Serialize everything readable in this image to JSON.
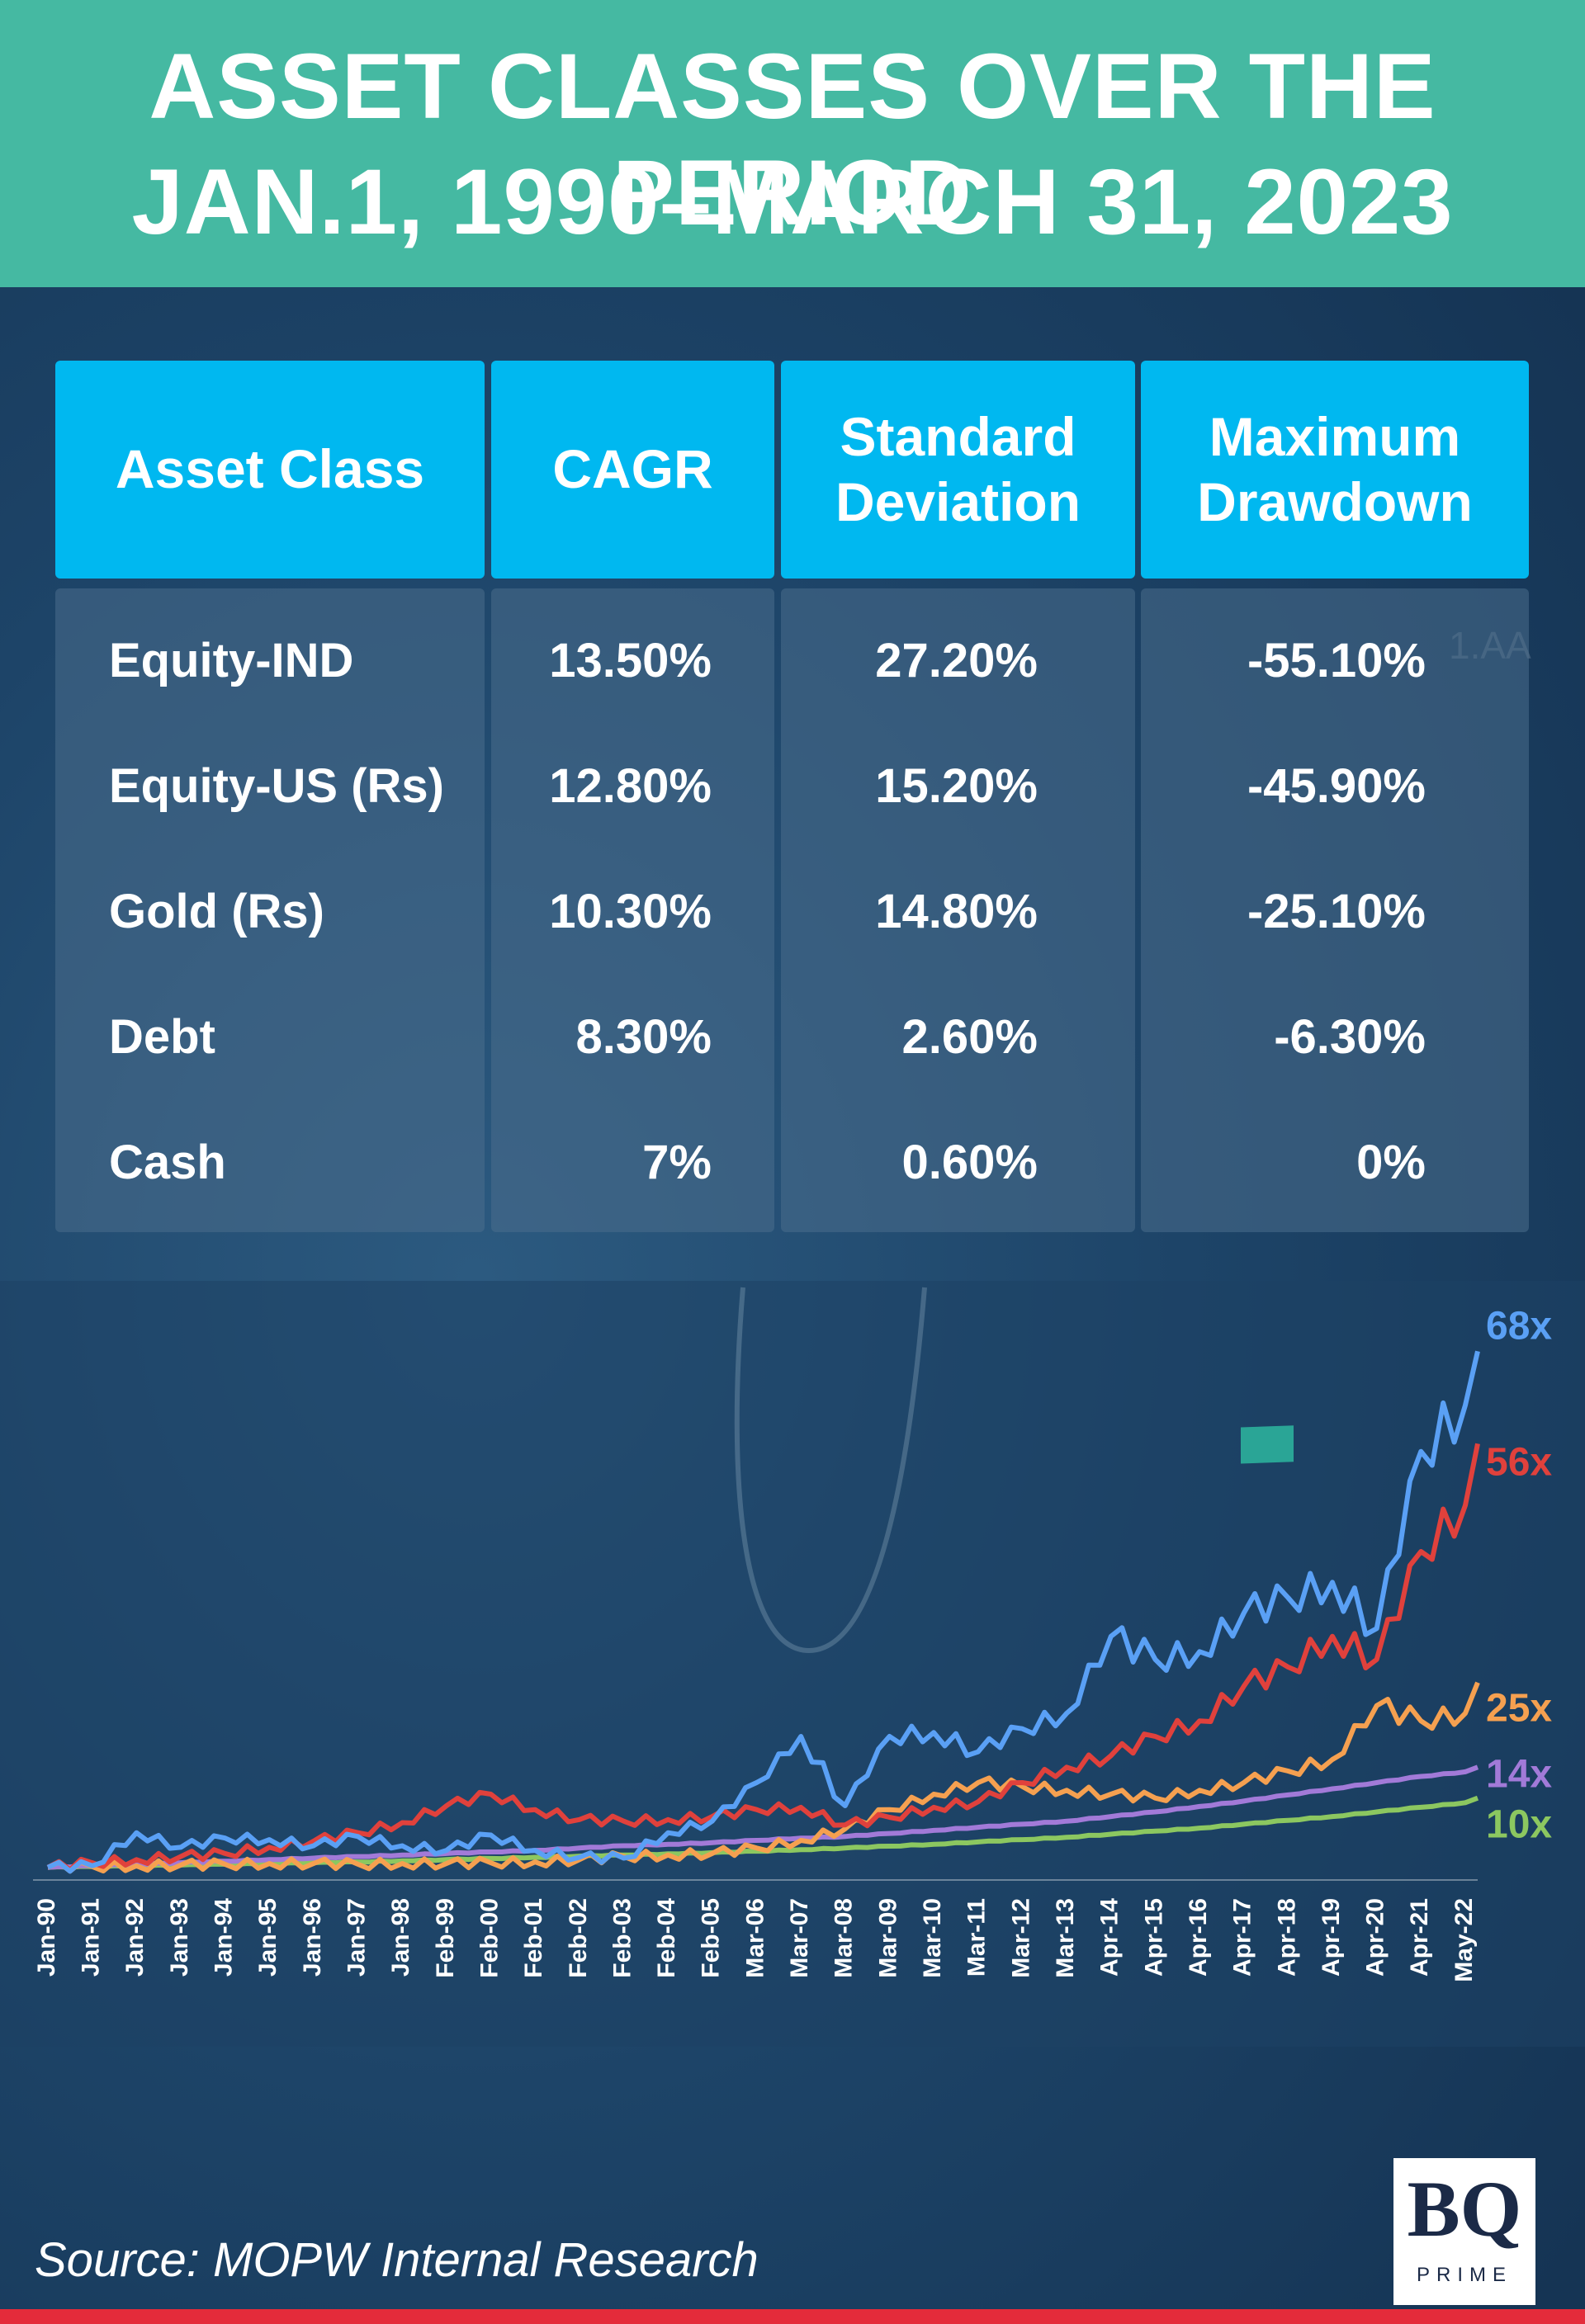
{
  "title": {
    "line1": "ASSET CLASSES OVER THE PERIOD",
    "line2": "JAN.1, 1990–MARCH 31, 2023"
  },
  "table": {
    "headers": [
      "Asset Class",
      "CAGR",
      "Standard Deviation",
      "Maximum Drawdown"
    ],
    "rows": [
      {
        "asset": "Equity-IND",
        "cagr": "13.50%",
        "std": "27.20%",
        "drawdown": "-55.10%"
      },
      {
        "asset": "Equity-US (Rs)",
        "cagr": "12.80%",
        "std": "15.20%",
        "drawdown": "-45.90%"
      },
      {
        "asset": "Gold (Rs)",
        "cagr": "10.30%",
        "std": "14.80%",
        "drawdown": "-25.10%"
      },
      {
        "asset": "Debt",
        "cagr": "8.30%",
        "std": "2.60%",
        "drawdown": "-6.30%"
      },
      {
        "asset": "Cash",
        "cagr": "7%",
        "std": "0.60%",
        "drawdown": "0%"
      }
    ]
  },
  "chart_data": {
    "type": "line",
    "title": "",
    "xlabel": "",
    "ylabel": "",
    "ylim": [
      0,
      72
    ],
    "grid": false,
    "x": [
      "Jan-90",
      "Jan-91",
      "Jan-92",
      "Jan-93",
      "Jan-94",
      "Jan-95",
      "Jan-96",
      "Jan-97",
      "Jan-98",
      "Feb-99",
      "Feb-00",
      "Feb-01",
      "Feb-02",
      "Feb-03",
      "Feb-04",
      "Feb-05",
      "Mar-06",
      "Mar-07",
      "Mar-08",
      "Mar-09",
      "Mar-10",
      "Mar-11",
      "Mar-12",
      "Mar-13",
      "Apr-14",
      "Apr-15",
      "Apr-16",
      "Apr-17",
      "Apr-18",
      "Apr-19",
      "Apr-20",
      "Apr-21",
      "May-22"
    ],
    "series": [
      {
        "end_label": "68x",
        "color": "#5aa0f5",
        "values": [
          1,
          1.2,
          5.5,
          3.6,
          4.8,
          4.6,
          3.8,
          5.0,
          3.8,
          3.2,
          5.2,
          3.2,
          2.3,
          2.2,
          5.5,
          7.0,
          12.0,
          18.0,
          9.0,
          18.0,
          18.5,
          16.0,
          19.0,
          21.0,
          31.0,
          28.0,
          29.0,
          34.0,
          36.0,
          38.0,
          32.0,
          55.0,
          61.0
        ],
        "last": 68
      },
      {
        "end_label": "56x",
        "color": "#e0413c",
        "values": [
          1,
          1.6,
          2.0,
          2.4,
          2.8,
          3.6,
          4.4,
          5.5,
          6.8,
          9.0,
          10.5,
          8.5,
          7.2,
          7.0,
          7.2,
          7.6,
          8.5,
          8.8,
          6.5,
          7.5,
          8.8,
          9.5,
          12.0,
          14.0,
          15.5,
          18.0,
          20.0,
          24.5,
          27.0,
          31.0,
          28.0,
          42.0,
          48.0
        ],
        "last": 56
      },
      {
        "end_label": "25x",
        "color": "#f5a050",
        "values": [
          1,
          1.1,
          1.2,
          1.3,
          1.4,
          1.5,
          1.5,
          1.4,
          1.5,
          1.5,
          1.6,
          1.7,
          2.0,
          2.4,
          2.6,
          2.8,
          3.5,
          4.5,
          6.0,
          8.5,
          10.5,
          12.0,
          11.5,
          11.0,
          10.5,
          10.0,
          11.0,
          12.0,
          13.5,
          15.0,
          22.0,
          20.0,
          21.0
        ],
        "last": 25
      },
      {
        "end_label": "14x",
        "color": "#a27ad8",
        "values": [
          1,
          1.2,
          1.4,
          1.6,
          1.8,
          2.0,
          2.2,
          2.4,
          2.6,
          2.8,
          3.0,
          3.2,
          3.5,
          3.8,
          4.0,
          4.2,
          4.5,
          4.8,
          5.0,
          5.4,
          5.8,
          6.2,
          6.6,
          7.0,
          7.6,
          8.2,
          8.9,
          9.6,
          10.4,
          11.2,
          12.0,
          12.8,
          13.4
        ],
        "last": 14
      },
      {
        "end_label": "10x",
        "color": "#8cc760",
        "values": [
          1,
          1.1,
          1.2,
          1.3,
          1.4,
          1.5,
          1.6,
          1.7,
          1.85,
          2.0,
          2.15,
          2.3,
          2.45,
          2.6,
          2.75,
          2.9,
          3.1,
          3.3,
          3.5,
          3.75,
          4.0,
          4.3,
          4.6,
          4.9,
          5.3,
          5.7,
          6.1,
          6.6,
          7.1,
          7.6,
          8.2,
          8.8,
          9.4
        ],
        "last": 10
      }
    ]
  },
  "source": "Source: MOPW Internal Research",
  "logo": {
    "mark": "BQ",
    "sub": "PRIME"
  }
}
